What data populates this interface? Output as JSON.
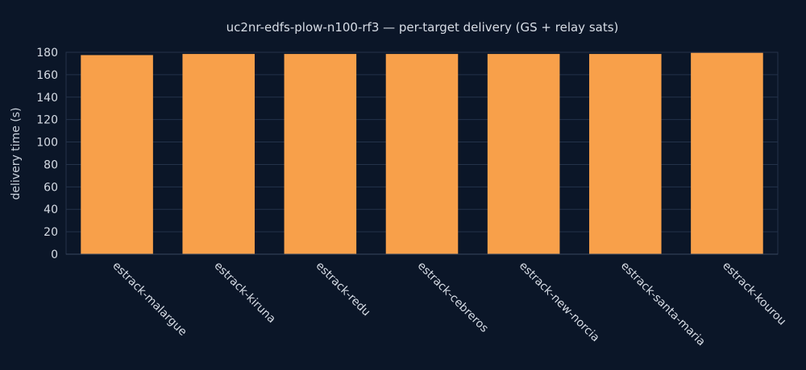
{
  "chart_data": {
    "type": "bar",
    "title": "uc2nr-edfs-plow-n100-rf3 — per-target delivery (GS + relay sats)",
    "xlabel": "",
    "ylabel": "delivery time (s)",
    "categories": [
      "estrack-malargue",
      "estrack-kiruna",
      "estrack-redu",
      "estrack-cebreros",
      "estrack-new-norcia",
      "estrack-santa-maria",
      "estrack-kourou"
    ],
    "values": [
      177.5,
      178.5,
      178.5,
      178.5,
      178.5,
      178.5,
      179.5
    ],
    "ylim": [
      0,
      180
    ],
    "yticks": [
      0,
      20,
      40,
      60,
      80,
      100,
      120,
      140,
      160,
      180
    ],
    "grid": true,
    "colors": {
      "background": "#0b1628",
      "bar": "#f8a04a",
      "grid": "#24324a",
      "axis": "#3a4860"
    }
  }
}
